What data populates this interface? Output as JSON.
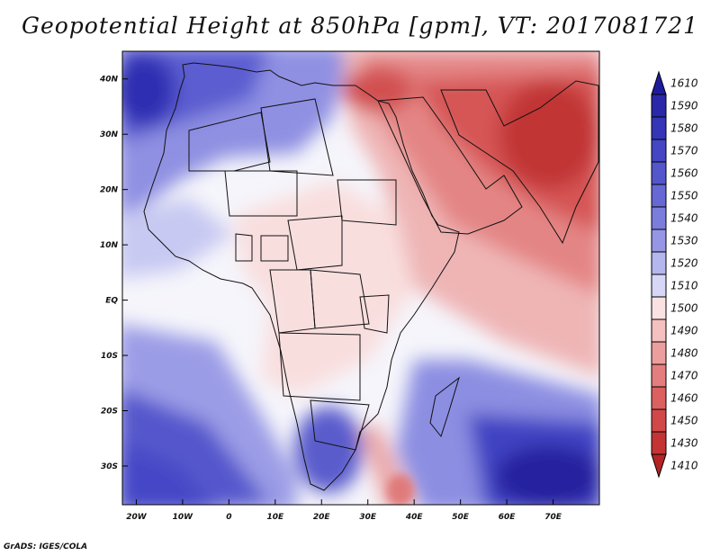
{
  "title": "Geopotential Height at 850hPa [gpm], VT: 2017081721",
  "credit": "GrADS: IGES/COLA",
  "map": {
    "lon_range": [
      -23,
      80
    ],
    "lat_range": [
      -37,
      45
    ],
    "lon_ticks": [
      {
        "value": -20,
        "label": "20W"
      },
      {
        "value": -10,
        "label": "10W"
      },
      {
        "value": 0,
        "label": "0"
      },
      {
        "value": 10,
        "label": "10E"
      },
      {
        "value": 20,
        "label": "20E"
      },
      {
        "value": 30,
        "label": "30E"
      },
      {
        "value": 40,
        "label": "40E"
      },
      {
        "value": 50,
        "label": "50E"
      },
      {
        "value": 60,
        "label": "60E"
      },
      {
        "value": 70,
        "label": "70E"
      }
    ],
    "lat_ticks": [
      {
        "value": 40,
        "label": "40N"
      },
      {
        "value": 30,
        "label": "30N"
      },
      {
        "value": 20,
        "label": "20N"
      },
      {
        "value": 10,
        "label": "10N"
      },
      {
        "value": 0,
        "label": "EQ"
      },
      {
        "value": -10,
        "label": "10S"
      },
      {
        "value": -20,
        "label": "20S"
      },
      {
        "value": -30,
        "label": "30S"
      }
    ]
  },
  "colorbar": {
    "levels": [
      {
        "label": "1610",
        "color": "#1f1c9c"
      },
      {
        "label": "1590",
        "color": "#2a28a8"
      },
      {
        "label": "1580",
        "color": "#3535b8"
      },
      {
        "label": "1570",
        "color": "#4446c4"
      },
      {
        "label": "1560",
        "color": "#5456cc"
      },
      {
        "label": "1550",
        "color": "#6668d4"
      },
      {
        "label": "1540",
        "color": "#7b7ddc"
      },
      {
        "label": "1530",
        "color": "#9597e6"
      },
      {
        "label": "1520",
        "color": "#b4b6ee"
      },
      {
        "label": "1510",
        "color": "#d6d7f7"
      },
      {
        "label": "1500",
        "color": "#fbe2e2"
      },
      {
        "label": "1490",
        "color": "#f4c0c0"
      },
      {
        "label": "1480",
        "color": "#ec9e9e"
      },
      {
        "label": "1470",
        "color": "#e47e7e"
      },
      {
        "label": "1460",
        "color": "#dc6060"
      },
      {
        "label": "1450",
        "color": "#d24848"
      },
      {
        "label": "1430",
        "color": "#c43434"
      },
      {
        "label": "1410",
        "color": "#b52424"
      }
    ]
  }
}
